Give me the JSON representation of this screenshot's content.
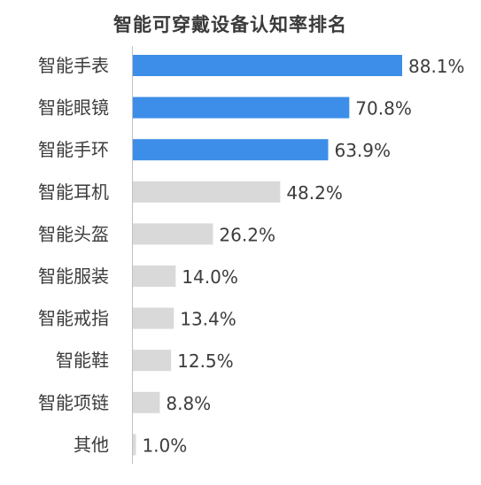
{
  "chart_data": {
    "type": "bar",
    "orientation": "horizontal",
    "title": "智能可穿戴设备认知率排名",
    "categories": [
      "智能手表",
      "智能眼镜",
      "智能手环",
      "智能耳机",
      "智能头盔",
      "智能服装",
      "智能戒指",
      "智能鞋",
      "智能项链",
      "其他"
    ],
    "values": [
      88.1,
      70.8,
      63.9,
      48.2,
      26.2,
      14.0,
      13.4,
      12.5,
      8.8,
      1.0
    ],
    "value_labels": [
      "88.1%",
      "70.8%",
      "63.9%",
      "48.2%",
      "26.2%",
      "14.0%",
      "13.4%",
      "12.5%",
      "8.8%",
      "1.0%"
    ],
    "highlight_count": 3,
    "colors": {
      "highlight": "#3c8ee8",
      "normal": "#d9d9d9",
      "axis": "#bfbfbf",
      "text": "#3c3c3c"
    },
    "xlim": [
      0,
      100
    ],
    "grid": false,
    "legend": "none"
  }
}
